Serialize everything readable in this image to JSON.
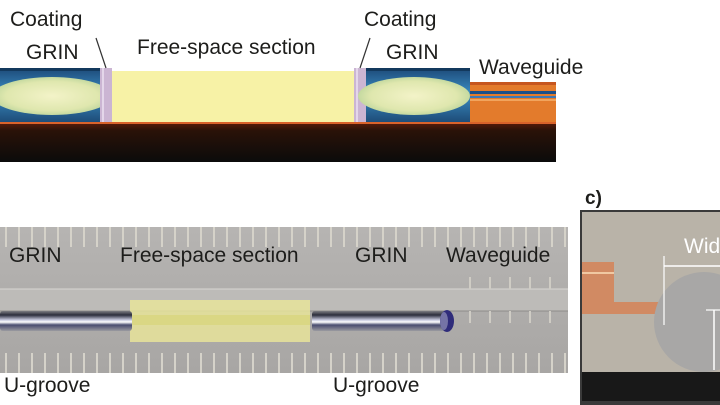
{
  "panel_a": {
    "coating_left": "Coating",
    "grin_left": "GRIN",
    "free_space": "Free-space section",
    "coating_right": "Coating",
    "grin_right": "GRIN",
    "waveguide": "Waveguide"
  },
  "panel_b": {
    "grin_left": "GRIN",
    "free_space": "Free-space section",
    "grin_right": "GRIN",
    "waveguide": "Waveguide",
    "ugroove_left": "U-groove",
    "ugroove_right": "U-groove"
  },
  "panel_c": {
    "label": "c)",
    "width_label": "Wid"
  },
  "colors": {
    "free_space_fill": "#f7f2a6",
    "grin_core": "#e6ecb4",
    "grin_sleeve": "#2d7bb2",
    "coating": "#c9b0d0",
    "waveguide_orange": "#e0782a",
    "substrate": "#111111"
  }
}
